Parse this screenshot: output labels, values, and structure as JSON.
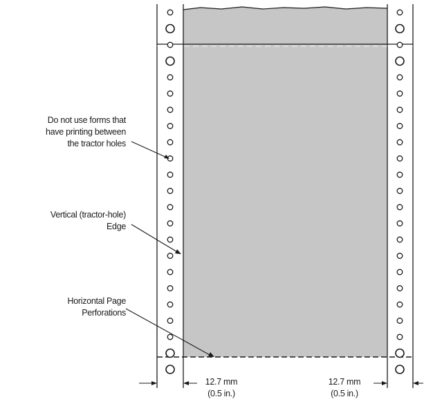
{
  "callouts": {
    "tractor_warning": [
      "Do not use forms that",
      "have printing between",
      "the tractor holes"
    ],
    "vertical_edge": [
      "Vertical (tractor-hole)",
      "Edge"
    ],
    "perforations": [
      "Horizontal Page",
      "Perforations"
    ]
  },
  "dimensions": {
    "left": [
      "12.7 mm",
      "(0.5 in.)"
    ],
    "right": [
      "12.7 mm",
      "(0.5 in.)"
    ]
  },
  "colors": {
    "paper": "#c6c6c6",
    "ink": "#1a1a1a"
  }
}
